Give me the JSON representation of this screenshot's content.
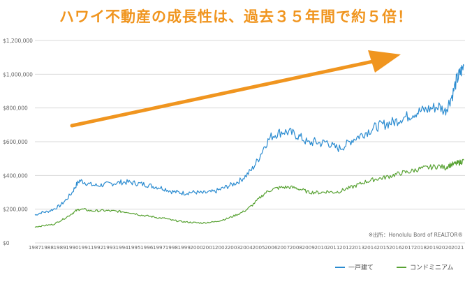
{
  "chart_data": {
    "type": "line",
    "title": "ハワイ不動産の成長性は、過去３５年間で約５倍！",
    "xlabel": "",
    "ylabel": "",
    "ylim": [
      0,
      1200000
    ],
    "xlim": [
      1987,
      2021.6
    ],
    "y_tick_labels": [
      "$0",
      "$200,000",
      "$400,000",
      "$600,000",
      "$800,000",
      "$1,000,000",
      "$1,200,000"
    ],
    "y_tick_values": [
      0,
      200000,
      400000,
      600000,
      800000,
      1000000,
      1200000
    ],
    "x_tick_labels": [
      "1987",
      "1988",
      "1989",
      "1990",
      "1991",
      "1992",
      "1993",
      "1994",
      "1995",
      "1996",
      "1997",
      "1998",
      "1999",
      "2000",
      "2001",
      "2002",
      "2003",
      "2004",
      "2005",
      "2006",
      "2007",
      "2008",
      "2009",
      "2010",
      "2011",
      "2012",
      "2013",
      "2014",
      "2015",
      "2016",
      "2017",
      "2018",
      "2019",
      "2020",
      "2021"
    ],
    "grid": true,
    "legend_position": "bottom-right",
    "source_note": "※出所：Honolulu Bord of REALTOR®",
    "series": [
      {
        "name": "一戸建て",
        "color": "#2a8bd0",
        "x": [
          1987.0,
          1987.5,
          1988.0,
          1988.5,
          1989.0,
          1989.5,
          1990.0,
          1990.3,
          1990.6,
          1991.0,
          1991.5,
          1992.0,
          1992.5,
          1993.0,
          1993.5,
          1994.0,
          1994.5,
          1995.0,
          1995.5,
          1996.0,
          1996.5,
          1997.0,
          1997.5,
          1998.0,
          1998.5,
          1999.0,
          1999.5,
          2000.0,
          2000.5,
          2001.0,
          2001.5,
          2002.0,
          2002.5,
          2003.0,
          2003.5,
          2004.0,
          2004.5,
          2005.0,
          2005.5,
          2006.0,
          2006.5,
          2007.0,
          2007.5,
          2008.0,
          2008.5,
          2009.0,
          2009.5,
          2010.0,
          2010.5,
          2011.0,
          2011.5,
          2012.0,
          2012.5,
          2013.0,
          2013.5,
          2014.0,
          2014.5,
          2015.0,
          2015.5,
          2016.0,
          2016.5,
          2017.0,
          2017.5,
          2018.0,
          2018.5,
          2019.0,
          2019.5,
          2020.0,
          2020.3,
          2020.6,
          2020.9,
          2021.1,
          2021.3,
          2021.5
        ],
        "values": [
          165000,
          180000,
          185000,
          200000,
          220000,
          255000,
          300000,
          340000,
          370000,
          360000,
          345000,
          340000,
          345000,
          350000,
          355000,
          360000,
          360000,
          355000,
          350000,
          345000,
          335000,
          330000,
          320000,
          305000,
          300000,
          295000,
          300000,
          300000,
          295000,
          300000,
          305000,
          320000,
          335000,
          350000,
          370000,
          400000,
          440000,
          500000,
          580000,
          630000,
          650000,
          660000,
          655000,
          640000,
          620000,
          590000,
          600000,
          590000,
          600000,
          570000,
          560000,
          580000,
          610000,
          630000,
          650000,
          670000,
          690000,
          700000,
          710000,
          720000,
          740000,
          750000,
          770000,
          780000,
          790000,
          800000,
          810000,
          780000,
          830000,
          880000,
          960000,
          990000,
          1020000,
          1050000
        ]
      },
      {
        "name": "コンドミニアム",
        "color": "#58a233",
        "x": [
          1987.0,
          1987.5,
          1988.0,
          1988.5,
          1989.0,
          1989.5,
          1990.0,
          1990.3,
          1990.6,
          1991.0,
          1991.5,
          1992.0,
          1992.5,
          1993.0,
          1993.5,
          1994.0,
          1994.5,
          1995.0,
          1995.5,
          1996.0,
          1996.5,
          1997.0,
          1997.5,
          1998.0,
          1998.5,
          1999.0,
          1999.5,
          2000.0,
          2000.5,
          2001.0,
          2001.5,
          2002.0,
          2002.5,
          2003.0,
          2003.5,
          2004.0,
          2004.5,
          2005.0,
          2005.5,
          2006.0,
          2006.5,
          2007.0,
          2007.5,
          2008.0,
          2008.5,
          2009.0,
          2009.5,
          2010.0,
          2010.5,
          2011.0,
          2011.5,
          2012.0,
          2012.5,
          2013.0,
          2013.5,
          2014.0,
          2014.5,
          2015.0,
          2015.5,
          2016.0,
          2016.5,
          2017.0,
          2017.5,
          2018.0,
          2018.5,
          2019.0,
          2019.5,
          2020.0,
          2020.3,
          2020.6,
          2020.9,
          2021.1,
          2021.3,
          2021.5
        ],
        "values": [
          95000,
          100000,
          105000,
          110000,
          130000,
          150000,
          175000,
          190000,
          200000,
          198000,
          190000,
          190000,
          192000,
          190000,
          188000,
          185000,
          182000,
          175000,
          165000,
          160000,
          155000,
          148000,
          145000,
          135000,
          130000,
          125000,
          122000,
          120000,
          118000,
          122000,
          125000,
          135000,
          145000,
          160000,
          175000,
          195000,
          225000,
          260000,
          295000,
          315000,
          325000,
          330000,
          330000,
          325000,
          315000,
          300000,
          300000,
          298000,
          305000,
          300000,
          305000,
          320000,
          330000,
          345000,
          360000,
          370000,
          380000,
          385000,
          395000,
          405000,
          415000,
          420000,
          430000,
          440000,
          445000,
          450000,
          455000,
          445000,
          460000,
          465000,
          470000,
          475000,
          480000,
          490000
        ]
      }
    ]
  }
}
